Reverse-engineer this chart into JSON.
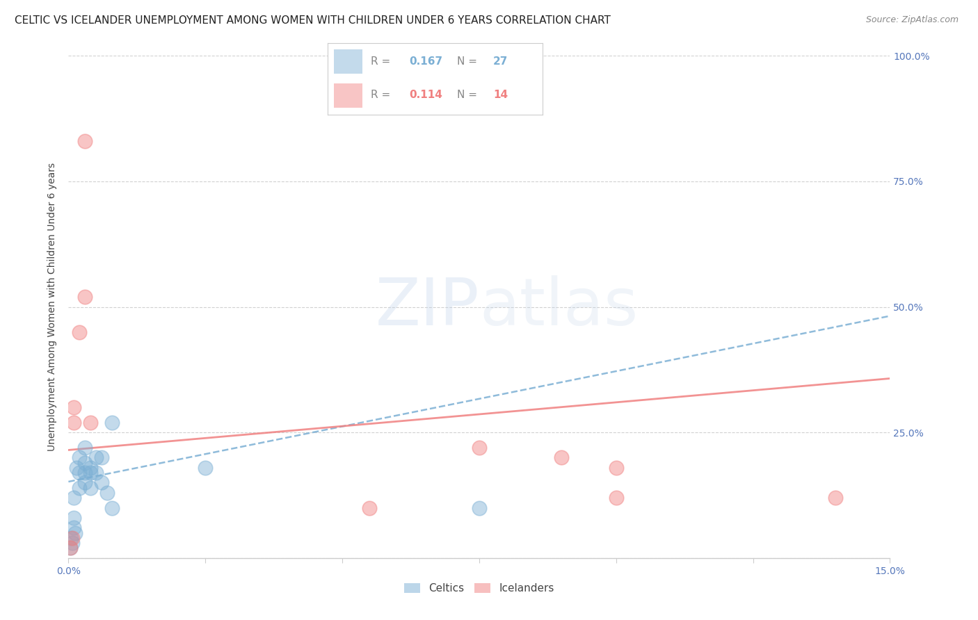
{
  "title": "CELTIC VS ICELANDER UNEMPLOYMENT AMONG WOMEN WITH CHILDREN UNDER 6 YEARS CORRELATION CHART",
  "source": "Source: ZipAtlas.com",
  "ylabel": "Unemployment Among Women with Children Under 6 years",
  "celtics_R": 0.167,
  "celtics_N": 27,
  "icelanders_R": 0.114,
  "icelanders_N": 14,
  "celtics_color": "#7BAFD4",
  "icelanders_color": "#F08080",
  "watermark": "ZIPatlas",
  "xlim": [
    0.0,
    0.15
  ],
  "ylim": [
    0.0,
    1.0
  ],
  "celtics_x": [
    0.0003,
    0.0005,
    0.0007,
    0.001,
    0.001,
    0.001,
    0.0012,
    0.0015,
    0.002,
    0.002,
    0.002,
    0.003,
    0.003,
    0.003,
    0.003,
    0.004,
    0.004,
    0.004,
    0.005,
    0.005,
    0.006,
    0.006,
    0.007,
    0.008,
    0.008,
    0.025,
    0.075
  ],
  "celtics_y": [
    0.02,
    0.04,
    0.03,
    0.06,
    0.08,
    0.12,
    0.05,
    0.18,
    0.14,
    0.17,
    0.2,
    0.15,
    0.17,
    0.19,
    0.22,
    0.14,
    0.17,
    0.18,
    0.17,
    0.2,
    0.15,
    0.2,
    0.13,
    0.1,
    0.27,
    0.18,
    0.1
  ],
  "icelanders_x": [
    0.0003,
    0.0007,
    0.001,
    0.001,
    0.002,
    0.003,
    0.003,
    0.004,
    0.055,
    0.075,
    0.09,
    0.1,
    0.1,
    0.14
  ],
  "icelanders_y": [
    0.02,
    0.04,
    0.27,
    0.3,
    0.45,
    0.52,
    0.83,
    0.27,
    0.1,
    0.22,
    0.2,
    0.12,
    0.18,
    0.12
  ],
  "trend_celtics_intercept": 0.152,
  "trend_celtics_slope": 2.2,
  "trend_icelanders_intercept": 0.215,
  "trend_icelanders_slope": 0.95,
  "marker_size": 220,
  "title_fontsize": 11,
  "axis_label_fontsize": 10,
  "tick_fontsize": 10,
  "legend_fontsize": 11
}
